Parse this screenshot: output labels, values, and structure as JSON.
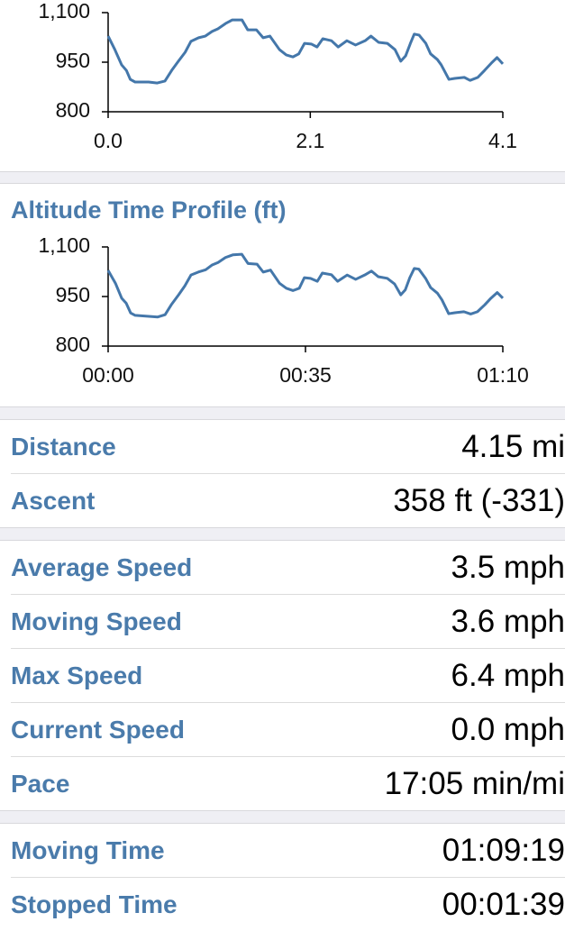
{
  "chart_data": [
    {
      "type": "line",
      "color": "#4477aa",
      "x": [
        0,
        0.07,
        0.14,
        0.19,
        0.23,
        0.28,
        0.42,
        0.51,
        0.59,
        0.66,
        0.73,
        0.8,
        0.86,
        0.94,
        1.01,
        1.08,
        1.14,
        1.22,
        1.29,
        1.39,
        1.45,
        1.54,
        1.61,
        1.68,
        1.78,
        1.85,
        1.92,
        1.98,
        2.04,
        2.11,
        2.17,
        2.23,
        2.32,
        2.39,
        2.48,
        2.57,
        2.67,
        2.73,
        2.81,
        2.9,
        2.98,
        3.04,
        3.09,
        3.14,
        3.18,
        3.23,
        3.3,
        3.35,
        3.42,
        3.46,
        3.54,
        3.6,
        3.7,
        3.76,
        3.84,
        3.91,
        3.98,
        4.04,
        4.1
      ],
      "values": [
        1029,
        988,
        942,
        925,
        898,
        890,
        890,
        887,
        893,
        925,
        953,
        980,
        1013,
        1024,
        1029,
        1043,
        1051,
        1067,
        1078,
        1078,
        1048,
        1048,
        1024,
        1029,
        988,
        972,
        966,
        975,
        1007,
        1005,
        996,
        1021,
        1015,
        996,
        1015,
        1002,
        1015,
        1029,
        1010,
        1007,
        988,
        953,
        969,
        1007,
        1035,
        1032,
        1007,
        975,
        958,
        942,
        898,
        901,
        904,
        895,
        904,
        925,
        947,
        964,
        945
      ],
      "xlim": [
        0,
        4.1
      ],
      "xticks": [
        {
          "value": 0,
          "label": "0.0"
        },
        2.1,
        4.1
      ],
      "ylim": [
        800,
        1100
      ],
      "yticks": [
        800,
        950,
        {
          "value": 1100,
          "label": "1,100"
        }
      ]
    },
    {
      "type": "line",
      "title": "Altitude Time Profile (ft)",
      "color": "#4477aa",
      "x": [
        0,
        1.3,
        2.4,
        3.2,
        4.0,
        4.8,
        7.2,
        8.8,
        10.1,
        11.2,
        12.5,
        13.6,
        14.7,
        16.0,
        17.3,
        18.4,
        19.5,
        20.8,
        22.1,
        23.7,
        24.8,
        26.4,
        27.5,
        28.8,
        30.4,
        31.6,
        32.8,
        33.9,
        34.8,
        35.9,
        37.1,
        38.0,
        39.6,
        40.7,
        42.4,
        43.9,
        45.5,
        46.7,
        47.9,
        49.5,
        50.8,
        51.9,
        52.7,
        53.5,
        54.3,
        55.1,
        56.3,
        57.2,
        58.4,
        59.2,
        60.4,
        61.5,
        63.1,
        64.3,
        65.5,
        66.8,
        67.9,
        69.0,
        70.0
      ],
      "values": [
        1029,
        990,
        945,
        930,
        900,
        893,
        890,
        888,
        895,
        925,
        955,
        982,
        1015,
        1024,
        1031,
        1045,
        1053,
        1068,
        1076,
        1078,
        1050,
        1048,
        1024,
        1030,
        990,
        975,
        968,
        975,
        1007,
        1005,
        996,
        1021,
        1016,
        996,
        1015,
        1002,
        1015,
        1027,
        1010,
        1005,
        988,
        955,
        970,
        1007,
        1035,
        1033,
        1005,
        977,
        960,
        940,
        898,
        901,
        904,
        897,
        904,
        925,
        945,
        962,
        945
      ],
      "xlim": [
        0,
        70
      ],
      "xticks": [
        {
          "value": 0,
          "label": "00:00"
        },
        {
          "value": 35,
          "label": "00:35"
        },
        {
          "value": 70,
          "label": "01:10"
        }
      ],
      "ylim": [
        800,
        1100
      ],
      "yticks": [
        800,
        950,
        {
          "value": 1100,
          "label": "1,100"
        }
      ]
    }
  ],
  "stats": [
    [
      [
        "Distance",
        "4.15 mi"
      ],
      [
        "Ascent",
        "358 ft (-331)"
      ]
    ],
    [
      [
        "Average Speed",
        "3.5 mph"
      ],
      [
        "Moving Speed",
        "3.6 mph"
      ],
      [
        "Max Speed",
        "6.4 mph"
      ],
      [
        "Current Speed",
        "0.0 mph"
      ],
      [
        "Pace",
        "17:05 min/mi"
      ]
    ],
    [
      [
        "Moving Time",
        "01:09:19"
      ],
      [
        "Stopped Time",
        "00:01:39"
      ]
    ]
  ]
}
